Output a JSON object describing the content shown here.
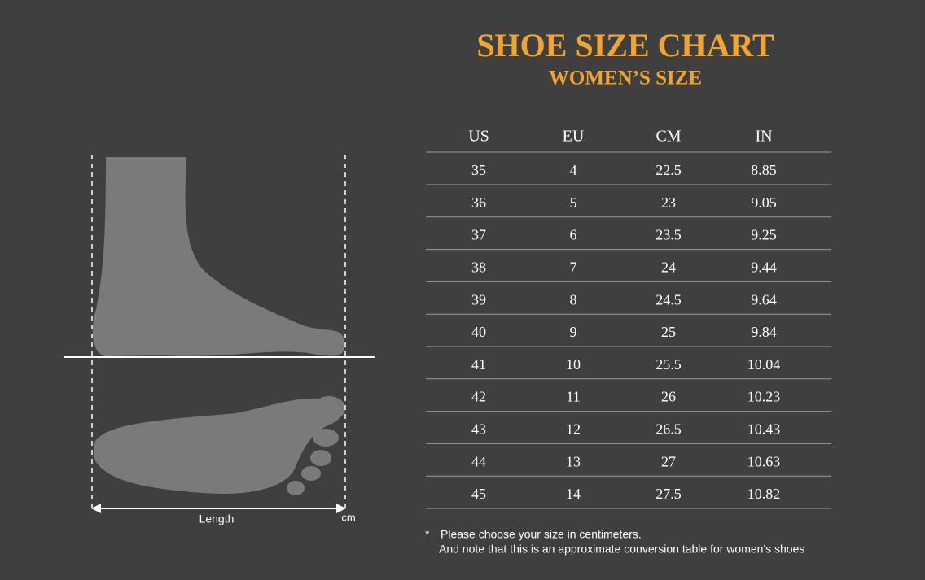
{
  "header": {
    "title": "SHOE SIZE CHART",
    "subtitle": "WOMEN’S SIZE"
  },
  "table": {
    "columns": [
      "US",
      "EU",
      "CM",
      "IN"
    ],
    "rows": [
      [
        "35",
        "4",
        "22.5",
        "8.85"
      ],
      [
        "36",
        "5",
        "23",
        "9.05"
      ],
      [
        "37",
        "6",
        "23.5",
        "9.25"
      ],
      [
        "38",
        "7",
        "24",
        "9.44"
      ],
      [
        "39",
        "8",
        "24.5",
        "9.64"
      ],
      [
        "40",
        "9",
        "25",
        "9.84"
      ],
      [
        "41",
        "10",
        "25.5",
        "10.04"
      ],
      [
        "42",
        "11",
        "26",
        "10.23"
      ],
      [
        "43",
        "12",
        "26.5",
        "10.43"
      ],
      [
        "44",
        "13",
        "27",
        "10.63"
      ],
      [
        "45",
        "14",
        "27.5",
        "10.82"
      ]
    ]
  },
  "diagram": {
    "length_label": "Length",
    "unit_label": "cm"
  },
  "note": {
    "marker": "*",
    "lines": [
      "Please choose your size in centimeters.",
      "And note that this is an approximate conversion table for women's shoes"
    ]
  }
}
